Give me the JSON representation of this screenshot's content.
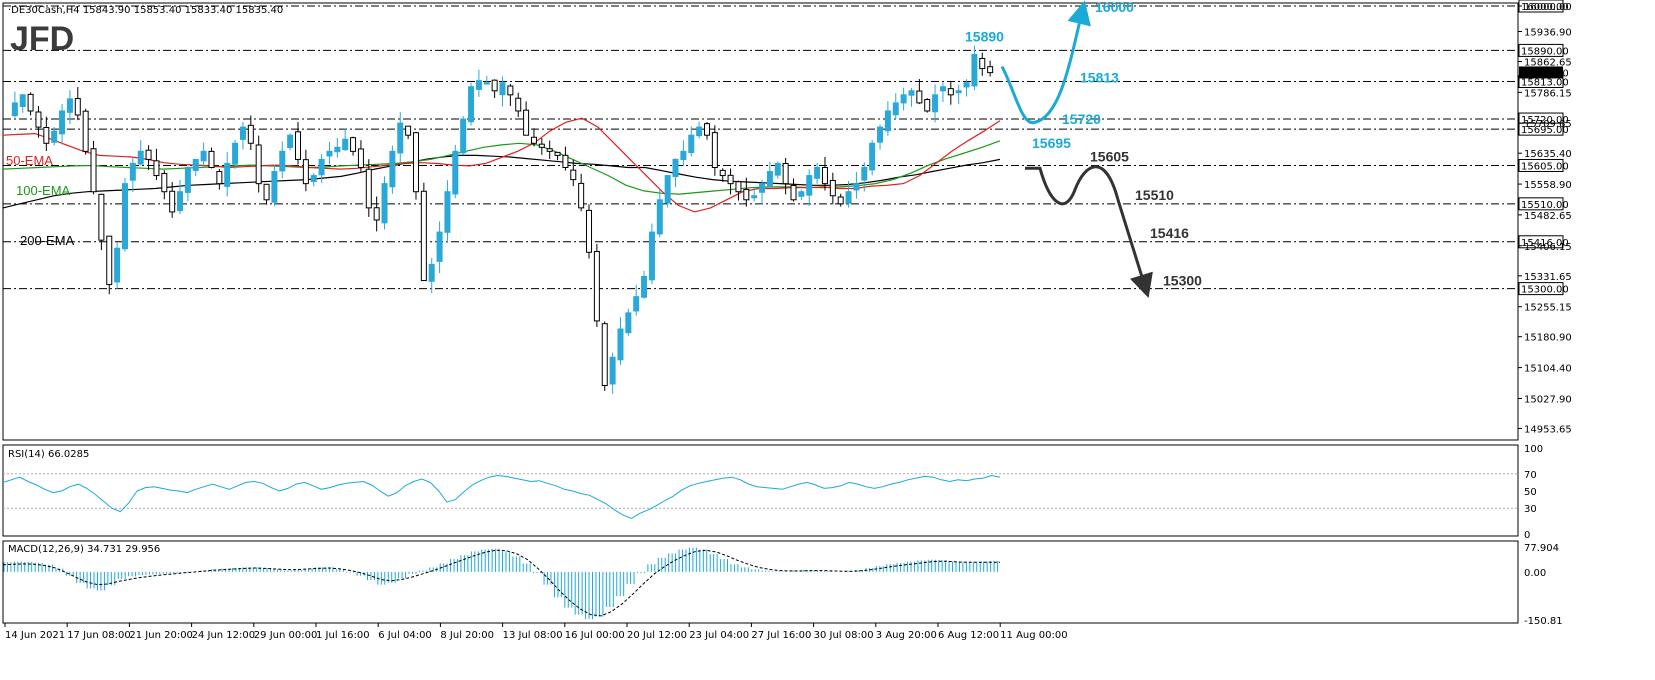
{
  "brand": "JFD",
  "chart_header": "·DE30Cash,H4  15843.90 15853.40 15833.40 15835.40",
  "colors": {
    "up": "#2aa8d8",
    "down": "#000000",
    "ema50": "#e02020",
    "ema100": "#1a9a1a",
    "ema200": "#000000",
    "bull": "#1ba9d8",
    "bear": "#333333",
    "ind": "#1ba9d8"
  },
  "chart_data": [
    {
      "type": "candlestick",
      "title": "DE30Cash,H4",
      "ohlc_readout": {
        "open": 15843.9,
        "high": 15853.4,
        "low": 15833.4,
        "close": 15835.4
      },
      "ylim": [
        14930,
        16000
      ],
      "y_ticks": [
        "16000.00",
        "15936.90",
        "15862.65",
        "15786.15",
        "15709.65",
        "15635.40",
        "15558.90",
        "15482.65",
        "15406.15",
        "15331.65",
        "15255.15",
        "15180.90",
        "15104.40",
        "15027.90",
        "14953.65"
      ],
      "x_ticks": [
        "14 Jun 2021",
        "17 Jun 08:00",
        "21 Jun 20:00",
        "24 Jun 12:00",
        "29 Jun 00:00",
        "1 Jul 16:00",
        "6 Jul 04:00",
        "8 Jul 20:00",
        "13 Jul 08:00",
        "16 Jul 00:00",
        "20 Jul 12:00",
        "23 Jul 04:00",
        "27 Jul 16:00",
        "30 Jul 08:00",
        "3 Aug 20:00",
        "6 Aug 12:00",
        "11 Aug 00:00"
      ],
      "price_path": [
        15720,
        15760,
        15780,
        15740,
        15700,
        15660,
        15690,
        15740,
        15770,
        15730,
        15640,
        15540,
        15420,
        15310,
        15400,
        15560,
        15610,
        15640,
        15620,
        15580,
        15540,
        15490,
        15540,
        15600,
        15620,
        15640,
        15600,
        15560,
        15610,
        15660,
        15700,
        15660,
        15560,
        15520,
        15590,
        15640,
        15680,
        15620,
        15560,
        15580,
        15620,
        15640,
        15650,
        15670,
        15640,
        15600,
        15500,
        15470,
        15560,
        15640,
        15710,
        15680,
        15540,
        15320,
        15360,
        15440,
        15540,
        15640,
        15720,
        15800,
        15815,
        15810,
        15790,
        15810,
        15780,
        15740,
        15680,
        15660,
        15650,
        15640,
        15630,
        15600,
        15570,
        15500,
        15390,
        15220,
        15060,
        15130,
        15200,
        15240,
        15280,
        15330,
        15440,
        15520,
        15580,
        15620,
        15640,
        15680,
        15700,
        15680,
        15600,
        15580,
        15560,
        15540,
        15520,
        15530,
        15560,
        15590,
        15610,
        15560,
        15520,
        15540,
        15580,
        15600,
        15560,
        15530,
        15510,
        15540,
        15560,
        15600,
        15660,
        15700,
        15740,
        15760,
        15780,
        15790,
        15760,
        15740,
        15780,
        15800,
        15780,
        15790,
        15810,
        15880,
        15845,
        15835
      ],
      "ema50": [
        15680,
        15682,
        15684,
        15670,
        15655,
        15640,
        15630,
        15628,
        15626,
        15620,
        15612,
        15608,
        15606,
        15604,
        15600,
        15602,
        15604,
        15606,
        15604,
        15600,
        15598,
        15596,
        15598,
        15602,
        15606,
        15610,
        15612,
        15610,
        15606,
        15604,
        15610,
        15625,
        15640,
        15660,
        15690,
        15712,
        15722,
        15700,
        15660,
        15620,
        15580,
        15540,
        15506,
        15490,
        15500,
        15520,
        15540,
        15548,
        15548,
        15550,
        15550,
        15552,
        15548,
        15548,
        15554,
        15556,
        15560,
        15580,
        15610,
        15640,
        15666,
        15690,
        15716
      ],
      "ema100": [
        15596,
        15598,
        15600,
        15602,
        15604,
        15605,
        15602,
        15600,
        15598,
        15596,
        15598,
        15600,
        15602,
        15604,
        15606,
        15604,
        15602,
        15600,
        15601,
        15604,
        15606,
        15608,
        15610,
        15614,
        15620,
        15630,
        15640,
        15650,
        15656,
        15660,
        15656,
        15640,
        15620,
        15600,
        15580,
        15556,
        15542,
        15536,
        15534,
        15538,
        15542,
        15546,
        15550,
        15552,
        15552,
        15551,
        15550,
        15552,
        15555,
        15560,
        15570,
        15586,
        15606,
        15622,
        15636,
        15650,
        15666
      ],
      "ema200": [
        15500,
        15510,
        15520,
        15530,
        15536,
        15540,
        15542,
        15544,
        15546,
        15548,
        15552,
        15556,
        15558,
        15560,
        15562,
        15564,
        15566,
        15568,
        15570,
        15574,
        15578,
        15586,
        15596,
        15604,
        15612,
        15620,
        15626,
        15630,
        15630,
        15628,
        15626,
        15622,
        15618,
        15614,
        15610,
        15608,
        15604,
        15600,
        15600,
        15592,
        15584,
        15576,
        15570,
        15566,
        15564,
        15562,
        15560,
        15558,
        15556,
        15556,
        15558,
        15562,
        15568,
        15576,
        15582,
        15590,
        15598,
        15606,
        15612,
        15620
      ],
      "series": [
        {
          "name": "50-EMA",
          "color_key": "ema50"
        },
        {
          "name": "100-EMA",
          "color_key": "ema100"
        },
        {
          "name": "200-EMA",
          "color_key": "ema200"
        }
      ],
      "levels": [
        {
          "value": 16000,
          "label": "16000.00"
        },
        {
          "value": 15890,
          "label": "15890.00"
        },
        {
          "value": 15813,
          "label": "15813.00"
        },
        {
          "value": 15720,
          "label": "15720.00"
        },
        {
          "value": 15695,
          "label": "15695.00"
        },
        {
          "value": 15605,
          "label": "15605.00"
        },
        {
          "value": 15510,
          "label": "15510.00"
        },
        {
          "value": 15416,
          "label": "15416.00"
        },
        {
          "value": 15300,
          "label": "15300.00"
        }
      ],
      "current_price_label": "15835.40",
      "annotations": {
        "bull": [
          "16000",
          "15890",
          "15813",
          "15720",
          "15695"
        ],
        "bear": [
          "15605",
          "15510",
          "15416",
          "15300"
        ]
      }
    },
    {
      "type": "line",
      "title": "RSI(14) 66.0285",
      "y_ticks": [
        "100",
        "70",
        "50",
        "30",
        "0"
      ],
      "ylim": [
        0,
        100
      ],
      "levels": [
        70,
        30
      ],
      "values": [
        60,
        63,
        66,
        61,
        57,
        52,
        48,
        50,
        55,
        58,
        53,
        46,
        38,
        30,
        26,
        36,
        50,
        54,
        55,
        53,
        51,
        50,
        48,
        52,
        55,
        58,
        55,
        52,
        56,
        60,
        61,
        59,
        54,
        50,
        53,
        58,
        60,
        56,
        52,
        54,
        57,
        59,
        60,
        61,
        57,
        50,
        44,
        48,
        56,
        61,
        64,
        60,
        50,
        37,
        40,
        49,
        57,
        62,
        66,
        68,
        67,
        65,
        63,
        61,
        62,
        59,
        56,
        52,
        50,
        47,
        45,
        40,
        35,
        28,
        22,
        18,
        24,
        28,
        33,
        39,
        44,
        51,
        56,
        59,
        61,
        63,
        65,
        66,
        63,
        58,
        55,
        54,
        53,
        52,
        55,
        58,
        60,
        57,
        53,
        54,
        56,
        60,
        58,
        55,
        53,
        55,
        58,
        60,
        63,
        65,
        67,
        66,
        63,
        61,
        63,
        62,
        64,
        65,
        68,
        66
      ],
      "last_value": 66.0285
    },
    {
      "type": "bar",
      "title": "MACD(12,26,9) 34.731 29.956",
      "y_ticks": [
        "77.904",
        "0.00",
        "-150.81"
      ],
      "ylim": [
        -150.81,
        77.904
      ],
      "macd": 34.731,
      "signal": 29.956,
      "histogram": [
        30,
        32,
        31,
        28,
        22,
        10,
        -12,
        -35,
        -52,
        -58,
        -42,
        -22,
        -14,
        -10,
        -8,
        -6,
        -4,
        -2,
        0,
        4,
        8,
        10,
        12,
        14,
        14,
        12,
        8,
        4,
        6,
        10,
        14,
        14,
        8,
        -2,
        -12,
        -26,
        -40,
        -34,
        -20,
        -6,
        4,
        14,
        26,
        40,
        52,
        64,
        70,
        72,
        64,
        48,
        26,
        -4,
        -40,
        -80,
        -112,
        -134,
        -148,
        -140,
        -110,
        -76,
        -38,
        -4,
        24,
        44,
        58,
        70,
        76,
        70,
        56,
        40,
        24,
        14,
        8,
        4,
        2,
        2,
        4,
        6,
        4,
        2,
        0,
        2,
        6,
        12,
        18,
        24,
        28,
        32,
        36,
        38,
        36,
        32,
        30,
        30,
        32,
        34
      ],
      "signal_line": [
        22,
        24,
        25,
        24,
        20,
        12,
        -2,
        -18,
        -32,
        -40,
        -38,
        -30,
        -24,
        -18,
        -14,
        -10,
        -7,
        -4,
        -1,
        2,
        5,
        7,
        9,
        11,
        12,
        11,
        9,
        7,
        7,
        9,
        11,
        12,
        10,
        5,
        -2,
        -12,
        -24,
        -28,
        -24,
        -16,
        -6,
        4,
        16,
        28,
        40,
        52,
        62,
        68,
        66,
        56,
        38,
        10,
        -22,
        -58,
        -90,
        -116,
        -134,
        -138,
        -124,
        -100,
        -70,
        -38,
        -8,
        16,
        36,
        52,
        64,
        68,
        62,
        50,
        36,
        24,
        14,
        8,
        4,
        3,
        3,
        4,
        4,
        3,
        2,
        2,
        4,
        8,
        13,
        18,
        22,
        26,
        30,
        33,
        33,
        31,
        30,
        30,
        30,
        30
      ]
    }
  ]
}
